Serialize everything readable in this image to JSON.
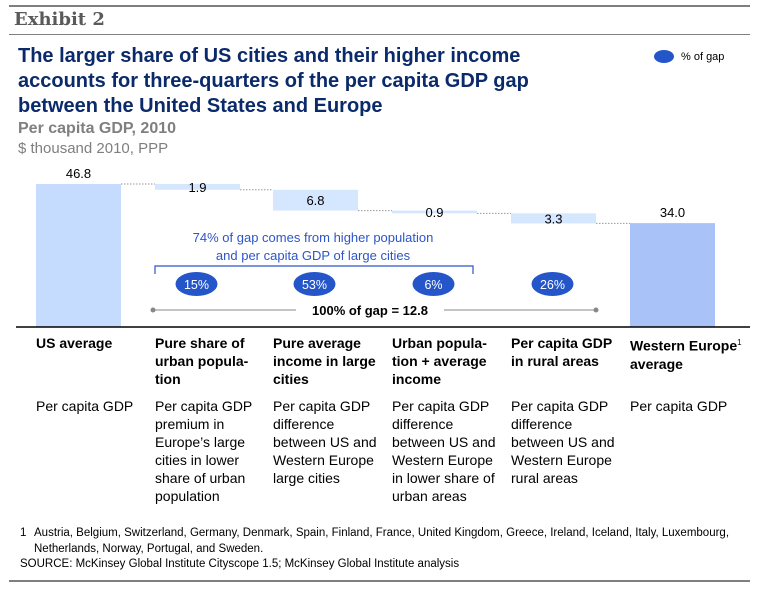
{
  "exhibit_label": "Exhibit 2",
  "title": "The larger share of US cities and their higher income accounts for three-quarters of the per capita GDP gap between the United States and Europe",
  "subtitle": "Per capita GDP, 2010",
  "unit": "$ thousand 2010, PPP",
  "legend": {
    "label": "% of gap",
    "color": "#2456c9"
  },
  "colors": {
    "total_bar": "#c6dcff",
    "end_bar": "#a9c3f8",
    "step_bar": "#d5e6ff",
    "bubble": "#2456c9",
    "annotation": "#2d55c8",
    "axis": "#000000",
    "connector": "#999999"
  },
  "chart_data": {
    "type": "waterfall",
    "title": "Per capita GDP, 2010",
    "ylabel": "$ thousand 2010, PPP",
    "ylim": [
      0,
      46.8
    ],
    "categories": [
      "US average",
      "Pure share of urban popula-tion",
      "Pure average income in large cities",
      "Urban popula-tion + average income",
      "Per capita GDP in rural areas",
      "Western Europe average"
    ],
    "bars": [
      {
        "label": "46.8",
        "value": 46.8,
        "kind": "total"
      },
      {
        "label": "1.9",
        "value": 1.9,
        "kind": "decrease"
      },
      {
        "label": "6.8",
        "value": 6.8,
        "kind": "decrease"
      },
      {
        "label": "0.9",
        "value": 0.9,
        "kind": "decrease"
      },
      {
        "label": "3.3",
        "value": 3.3,
        "kind": "decrease"
      },
      {
        "label": "34.0",
        "value": 34.0,
        "kind": "total"
      }
    ],
    "gap_shares": [
      {
        "category_index": 1,
        "label": "15%"
      },
      {
        "category_index": 2,
        "label": "53%"
      },
      {
        "category_index": 3,
        "label": "6%"
      },
      {
        "category_index": 4,
        "label": "26%"
      }
    ],
    "annotations": {
      "bracket_text_line1": "74% of gap comes from higher population",
      "bracket_text_line2": "and per capita GDP of large cities",
      "total_gap": "100% of gap = 12.8"
    }
  },
  "columns": [
    {
      "header": "US average",
      "footnote_mark": "",
      "header_line3": "",
      "description": "Per capita GDP"
    },
    {
      "header": "Pure share of urban popula-tion",
      "footnote_mark": "",
      "header_line3": "",
      "description": "Per capita GDP premium in Europe’s large cities in lower share of urban population"
    },
    {
      "header": "Pure average income in large cities",
      "footnote_mark": "",
      "header_line3": "",
      "description": "Per capita GDP difference between US and Western Europe large cities"
    },
    {
      "header": "Urban popula-tion + average income",
      "footnote_mark": "",
      "header_line3": "",
      "description": "Per capita GDP difference between US and Western Europe in lower share of urban areas"
    },
    {
      "header": "Per capita GDP in rural areas",
      "footnote_mark": "",
      "header_line3": "",
      "description": "Per capita GDP difference between US and Western Europe rural areas"
    },
    {
      "header": "Western Europe",
      "footnote_mark": "1",
      "header_line3": "average",
      "description": "Per capita GDP"
    }
  ],
  "footnote": {
    "number": "1",
    "text": "Austria, Belgium, Switzerland, Germany, Denmark, Spain, Finland, France, United Kingdom, Greece, Ireland, Iceland, Italy, Luxembourg, Netherlands, Norway, Portugal, and Sweden."
  },
  "source": "SOURCE: McKinsey Global Institute Cityscope 1.5; McKinsey Global Institute analysis"
}
